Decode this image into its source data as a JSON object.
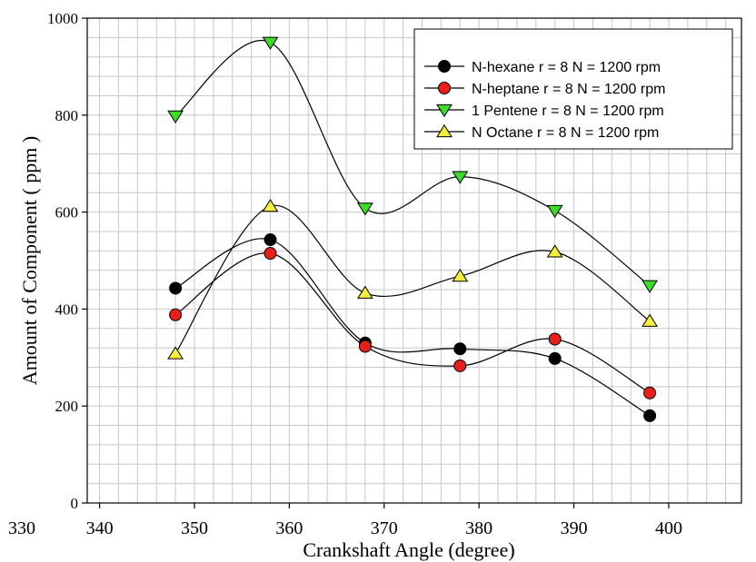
{
  "chart_data": {
    "type": "line",
    "xlabel": "Crankshaft Angle (degree)",
    "ylabel": "Amount of Component ( ppm )",
    "xlim": [
      330,
      410
    ],
    "ylim": [
      0,
      1000
    ],
    "x_ticks": [
      330,
      340,
      350,
      360,
      370,
      380,
      390,
      400
    ],
    "y_ticks": [
      0,
      200,
      400,
      600,
      800,
      1000
    ],
    "grid": true,
    "legend_position": "top-right",
    "x": [
      348,
      358,
      368,
      378,
      388,
      398
    ],
    "series": [
      {
        "name": "N-hexane r = 8 N = 1200 rpm",
        "marker": "circle",
        "color": "#000000",
        "values": [
          443,
          543,
          330,
          318,
          298,
          180
        ]
      },
      {
        "name": "N-heptane r = 8 N = 1200 rpm",
        "marker": "circle",
        "color": "#e8201c",
        "values": [
          388,
          515,
          323,
          283,
          338,
          227
        ]
      },
      {
        "name": "1 Pentene r = 8 N = 1200 rpm",
        "marker": "triangle-down",
        "color": "#3ddc2a",
        "values": [
          798,
          950,
          608,
          673,
          603,
          448
        ]
      },
      {
        "name": "N Octane r = 8 N = 1200 rpm",
        "marker": "triangle-up",
        "color": "#f4ef3a",
        "values": [
          308,
          612,
          433,
          468,
          518,
          375
        ]
      }
    ]
  }
}
